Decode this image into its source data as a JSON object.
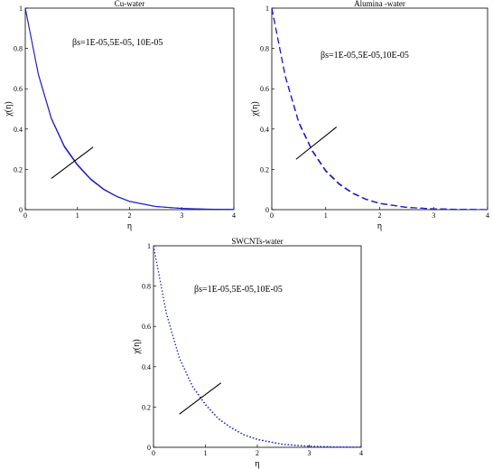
{
  "chart_data": [
    {
      "type": "line",
      "title": "Cu-water",
      "xlabel": "η",
      "ylabel": "χ(η)",
      "annotation": "βs=1E-05,5E-05, 10E-05",
      "xlim": [
        0,
        4
      ],
      "ylim": [
        0,
        1
      ],
      "xticks": [
        "0",
        "1",
        "2",
        "3",
        "4"
      ],
      "yticks": [
        "0",
        "0.2",
        "0.4",
        "0.6",
        "0.8",
        "1"
      ],
      "line_style": "solid",
      "color": "#2020c8",
      "series": [
        {
          "x": [
            0,
            0.25,
            0.5,
            0.75,
            1,
            1.25,
            1.5,
            1.75,
            2,
            2.5,
            3,
            3.5,
            4
          ],
          "values": [
            1,
            0.67,
            0.45,
            0.31,
            0.22,
            0.15,
            0.1,
            0.065,
            0.04,
            0.015,
            0.006,
            0.002,
            0.001
          ]
        },
        {
          "x": [
            0,
            0.25,
            0.5,
            0.75,
            1,
            1.25,
            1.5,
            1.75,
            2,
            2.5,
            3,
            3.5,
            4
          ],
          "values": [
            1,
            0.672,
            0.452,
            0.313,
            0.222,
            0.152,
            0.101,
            0.066,
            0.041,
            0.016,
            0.006,
            0.002,
            0.001
          ]
        },
        {
          "x": [
            0,
            0.25,
            0.5,
            0.75,
            1,
            1.25,
            1.5,
            1.75,
            2,
            2.5,
            3,
            3.5,
            4
          ],
          "values": [
            1,
            0.674,
            0.455,
            0.316,
            0.225,
            0.154,
            0.103,
            0.067,
            0.042,
            0.016,
            0.007,
            0.003,
            0.001
          ]
        }
      ]
    },
    {
      "type": "line",
      "title": "Alumina -water",
      "xlabel": "η",
      "ylabel": "χ(η)",
      "annotation": "βs=1E-05,5E-05,10E-05",
      "xlim": [
        0,
        4
      ],
      "ylim": [
        0,
        1
      ],
      "xticks": [
        "0",
        "1",
        "2",
        "3",
        "4"
      ],
      "yticks": [
        "0",
        "0.2",
        "0.4",
        "0.6",
        "0.8",
        "1"
      ],
      "line_style": "dashed",
      "color": "#2020c8",
      "series": [
        {
          "x": [
            0,
            0.25,
            0.5,
            0.75,
            1,
            1.25,
            1.5,
            1.75,
            2,
            2.5,
            3,
            3.5,
            4
          ],
          "values": [
            1,
            0.66,
            0.43,
            0.29,
            0.19,
            0.125,
            0.08,
            0.05,
            0.03,
            0.011,
            0.004,
            0.001,
            0.0
          ]
        },
        {
          "x": [
            0,
            0.25,
            0.5,
            0.75,
            1,
            1.25,
            1.5,
            1.75,
            2,
            2.5,
            3,
            3.5,
            4
          ],
          "values": [
            1,
            0.662,
            0.433,
            0.292,
            0.192,
            0.127,
            0.081,
            0.051,
            0.031,
            0.011,
            0.004,
            0.001,
            0.0
          ]
        },
        {
          "x": [
            0,
            0.25,
            0.5,
            0.75,
            1,
            1.25,
            1.5,
            1.75,
            2,
            2.5,
            3,
            3.5,
            4
          ],
          "values": [
            1,
            0.664,
            0.436,
            0.295,
            0.195,
            0.129,
            0.083,
            0.052,
            0.032,
            0.012,
            0.004,
            0.002,
            0.0
          ]
        }
      ]
    },
    {
      "type": "line",
      "title": "SWCNTs-water",
      "xlabel": "η",
      "ylabel": "χ(η)",
      "annotation": "βs=1E-05,5E-05,10E-05",
      "xlim": [
        0,
        4
      ],
      "ylim": [
        0,
        1
      ],
      "xticks": [
        "0",
        "1",
        "2",
        "3",
        "4"
      ],
      "yticks": [
        "0",
        "0.2",
        "0.4",
        "0.6",
        "0.8",
        "1"
      ],
      "line_style": "dotted",
      "color": "#2020c8",
      "series": [
        {
          "x": [
            0,
            0.25,
            0.5,
            0.75,
            1,
            1.25,
            1.5,
            1.75,
            2,
            2.5,
            3,
            3.5,
            4
          ],
          "values": [
            1,
            0.66,
            0.44,
            0.3,
            0.21,
            0.14,
            0.095,
            0.06,
            0.038,
            0.014,
            0.005,
            0.002,
            0.001
          ]
        },
        {
          "x": [
            0,
            0.25,
            0.5,
            0.75,
            1,
            1.25,
            1.5,
            1.75,
            2,
            2.5,
            3,
            3.5,
            4
          ],
          "values": [
            1,
            0.662,
            0.442,
            0.302,
            0.212,
            0.142,
            0.096,
            0.061,
            0.039,
            0.014,
            0.005,
            0.002,
            0.001
          ]
        },
        {
          "x": [
            0,
            0.25,
            0.5,
            0.75,
            1,
            1.25,
            1.5,
            1.75,
            2,
            2.5,
            3,
            3.5,
            4
          ],
          "values": [
            1,
            0.664,
            0.445,
            0.305,
            0.215,
            0.144,
            0.098,
            0.062,
            0.04,
            0.015,
            0.006,
            0.002,
            0.001
          ]
        }
      ]
    }
  ]
}
